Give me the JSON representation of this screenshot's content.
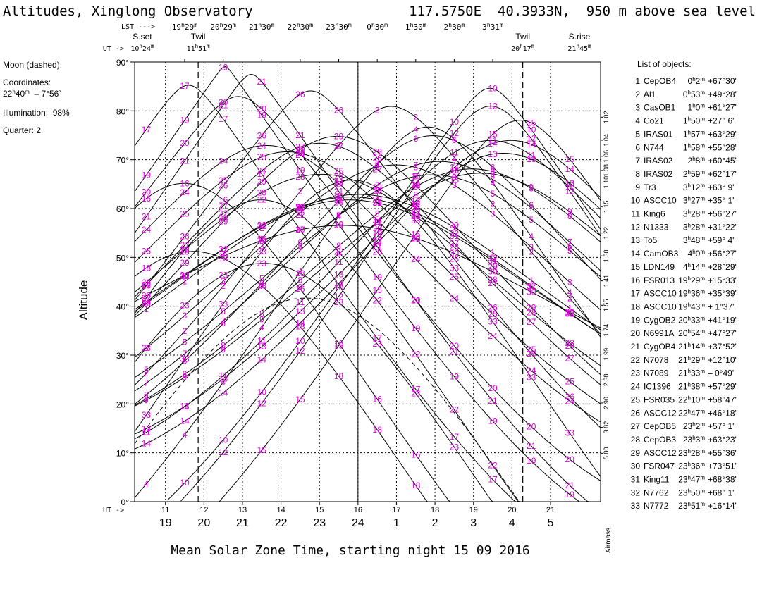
{
  "header": {
    "title": "Altitudes, Xinglong Observatory",
    "coords": "117.5750E  40.3933N,  950 m above sea level"
  },
  "top_scale": {
    "lst_label": "LST --->",
    "lst_ticks": [
      {
        "h": "19",
        "m": "29",
        "ut": 11.5
      },
      {
        "h": "20",
        "m": "29",
        "ut": 12.5
      },
      {
        "h": "21",
        "m": "30",
        "ut": 13.5
      },
      {
        "h": "22",
        "m": "30",
        "ut": 14.5
      },
      {
        "h": "23",
        "m": "30",
        "ut": 15.5
      },
      {
        "h": "0",
        "m": "30",
        "ut": 16.5
      },
      {
        "h": "1",
        "m": "30",
        "ut": 17.5
      },
      {
        "h": "2",
        "m": "30",
        "ut": 18.5
      },
      {
        "h": "3",
        "m": "31",
        "ut": 19.5
      }
    ],
    "events": [
      {
        "label": "S.set",
        "ut_label_h": "10",
        "ut_label_m": "24",
        "ut": 10.4
      },
      {
        "label": "Twil",
        "ut_label_h": "11",
        "ut_label_m": "51",
        "ut": 11.85
      },
      {
        "label": "Twil",
        "ut_label_h": "20",
        "ut_label_m": "17",
        "ut": 20.28
      },
      {
        "label": "S.rise",
        "ut_label_h": "21",
        "ut_label_m": "45",
        "ut": 21.75
      }
    ],
    "ut_arrow": "UT -> "
  },
  "moon_panel": {
    "title": "Moon (dashed):",
    "coords_label": "Coordinates:",
    "ra_h": "22",
    "ra_m": "40",
    "dec": "– 7°56`",
    "illumination": "Illumination:  98%",
    "quarter": "Quarter: 2"
  },
  "airmass_label": "Airmass",
  "airmass_ticks": [
    {
      "label": "1.02",
      "alt": 78.7
    },
    {
      "label": "1.04",
      "alt": 74.0
    },
    {
      "label": "1.06",
      "alt": 70.7
    },
    {
      "label": "1.08",
      "alt": 67.8
    },
    {
      "label": "1.10",
      "alt": 65.4
    },
    {
      "label": "1.15",
      "alt": 60.4
    },
    {
      "label": "1.22",
      "alt": 55.0
    },
    {
      "label": "1.30",
      "alt": 50.3
    },
    {
      "label": "1.41",
      "alt": 45.2
    },
    {
      "label": "1.55",
      "alt": 40.2
    },
    {
      "label": "1.74",
      "alt": 35.1
    },
    {
      "label": "1.99",
      "alt": 30.2
    },
    {
      "label": "2.38",
      "alt": 24.9
    },
    {
      "label": "2.90",
      "alt": 20.2
    },
    {
      "label": "3.82",
      "alt": 15.2
    },
    {
      "label": "5.80",
      "alt": 9.9
    }
  ],
  "objects_panel": {
    "title": "List of objects:",
    "objects": [
      {
        "n": "1",
        "name": "CepOB4",
        "rah": "0",
        "ram": "2",
        "dec": "+67°30'"
      },
      {
        "n": "2",
        "name": "Al1",
        "rah": "0",
        "ram": "53",
        "dec": "+49°28'"
      },
      {
        "n": "3",
        "name": "CasOB1",
        "rah": "1",
        "ram": "0",
        "dec": "+61°27'"
      },
      {
        "n": "4",
        "name": "Co21",
        "rah": "1",
        "ram": "50",
        "dec": "+27° 6'"
      },
      {
        "n": "5",
        "name": "IRAS01",
        "rah": "1",
        "ram": "57",
        "dec": "+63°29'"
      },
      {
        "n": "6",
        "name": "N744",
        "rah": "1",
        "ram": "58",
        "dec": "+55°28'"
      },
      {
        "n": "7",
        "name": "IRAS02",
        "rah": "2",
        "ram": "8",
        "dec": "+60°45'"
      },
      {
        "n": "8",
        "name": "IRAS02",
        "rah": "2",
        "ram": "59",
        "dec": "+62°17'"
      },
      {
        "n": "9",
        "name": "Tr3",
        "rah": "3",
        "ram": "12",
        "dec": "+63° 9'"
      },
      {
        "n": "10",
        "name": "ASCC10",
        "rah": "3",
        "ram": "27",
        "dec": "+35° 1'"
      },
      {
        "n": "11",
        "name": "King6",
        "rah": "3",
        "ram": "28",
        "dec": "+56°27'"
      },
      {
        "n": "12",
        "name": "N1333",
        "rah": "3",
        "ram": "28",
        "dec": "+31°22'"
      },
      {
        "n": "13",
        "name": "To5",
        "rah": "3",
        "ram": "48",
        "dec": "+59° 4'"
      },
      {
        "n": "14",
        "name": "CamOB3",
        "rah": "4",
        "ram": "0",
        "dec": "+56°27'"
      },
      {
        "n": "15",
        "name": "LDN149",
        "rah": "4",
        "ram": "14",
        "dec": "+28°29'"
      },
      {
        "n": "16",
        "name": "FSR013",
        "rah": "19",
        "ram": "29",
        "dec": "+15°33'"
      },
      {
        "n": "17",
        "name": "ASCC10",
        "rah": "19",
        "ram": "36",
        "dec": "+35°39'"
      },
      {
        "n": "18",
        "name": "ASCC10",
        "rah": "19",
        "ram": "43",
        "dec": "+ 1°37'"
      },
      {
        "n": "19",
        "name": "CygOB2",
        "rah": "20",
        "ram": "33",
        "dec": "+41°19'"
      },
      {
        "n": "20",
        "name": "N6991A",
        "rah": "20",
        "ram": "54",
        "dec": "+47°27'"
      },
      {
        "n": "21",
        "name": "CygOB4",
        "rah": "21",
        "ram": "14",
        "dec": "+37°52'"
      },
      {
        "n": "22",
        "name": "N7078",
        "rah": "21",
        "ram": "29",
        "dec": "+12°10'"
      },
      {
        "n": "23",
        "name": "N7089",
        "rah": "21",
        "ram": "33",
        "dec": "– 0°49'"
      },
      {
        "n": "24",
        "name": "IC1396",
        "rah": "21",
        "ram": "38",
        "dec": "+57°29'"
      },
      {
        "n": "25",
        "name": "FSR035",
        "rah": "22",
        "ram": "10",
        "dec": "+58°47'"
      },
      {
        "n": "26",
        "name": "ASCC12",
        "rah": "22",
        "ram": "47",
        "dec": "+46°18'"
      },
      {
        "n": "27",
        "name": "CepOB5",
        "rah": "23",
        "ram": "2",
        "dec": "+57° 1'"
      },
      {
        "n": "28",
        "name": "CepOB3",
        "rah": "23",
        "ram": "3",
        "dec": "+63°23'"
      },
      {
        "n": "29",
        "name": "ASCC12",
        "rah": "23",
        "ram": "28",
        "dec": "+55°36'"
      },
      {
        "n": "30",
        "name": "FSR047",
        "rah": "23",
        "ram": "36",
        "dec": "+73°51'"
      },
      {
        "n": "31",
        "name": "King11",
        "rah": "23",
        "ram": "47",
        "dec": "+68°38'"
      },
      {
        "n": "32",
        "name": "N7762",
        "rah": "23",
        "ram": "50",
        "dec": "+68° 1'"
      },
      {
        "n": "33",
        "name": "N7772",
        "rah": "23",
        "ram": "51",
        "dec": "+16°14'"
      }
    ]
  },
  "colors": {
    "curves": "#000000",
    "labels": "#e000e0",
    "grid": "#000000",
    "background": "#ffffff"
  },
  "chart_data": {
    "type": "line",
    "title": "Altitudes, Xinglong Observatory",
    "xlabel": "Mean Solar Zone Time, starting night 15 09 2016",
    "ylabel": "Altitude",
    "ut_axis_label": "UT ->",
    "xlim": [
      10.2,
      22.3
    ],
    "ylim": [
      0,
      90
    ],
    "x_ut_ticks": [
      11,
      12,
      13,
      14,
      15,
      16,
      17,
      18,
      19,
      20,
      21
    ],
    "x_local_ticks": [
      {
        "label": "19",
        "ut": 11
      },
      {
        "label": "20",
        "ut": 12
      },
      {
        "label": "21",
        "ut": 13
      },
      {
        "label": "22",
        "ut": 14
      },
      {
        "label": "23",
        "ut": 15
      },
      {
        "label": "24",
        "ut": 16
      },
      {
        "label": "1",
        "ut": 17
      },
      {
        "label": "2",
        "ut": 18
      },
      {
        "label": "3",
        "ut": 19
      },
      {
        "label": "4",
        "ut": 20
      },
      {
        "label": "5",
        "ut": 21
      }
    ],
    "y_ticks": [
      {
        "label": "0°",
        "value": 0
      },
      {
        "label": "10°",
        "value": 10
      },
      {
        "label": "20°",
        "value": 20
      },
      {
        "label": "30°",
        "value": 30
      },
      {
        "label": "40°",
        "value": 40
      },
      {
        "label": "50°",
        "value": 50
      },
      {
        "label": "60°",
        "value": 60
      },
      {
        "label": "70°",
        "value": 70
      },
      {
        "label": "80°",
        "value": 80
      },
      {
        "label": "90°",
        "value": 90
      }
    ],
    "grid": true,
    "midnight_ut": 16,
    "site_latitude_deg": 40.3933,
    "lst_at_ut11": 19.0,
    "moon": {
      "ra_h": 22.667,
      "dec_deg": -7.93,
      "style": "dashed"
    },
    "series": [
      {
        "name": "1",
        "ra_h": 0.033,
        "dec_deg": 67.5
      },
      {
        "name": "2",
        "ra_h": 0.883,
        "dec_deg": 49.47
      },
      {
        "name": "3",
        "ra_h": 1.0,
        "dec_deg": 61.45
      },
      {
        "name": "4",
        "ra_h": 1.833,
        "dec_deg": 27.1
      },
      {
        "name": "5",
        "ra_h": 1.95,
        "dec_deg": 63.48
      },
      {
        "name": "6",
        "ra_h": 1.967,
        "dec_deg": 55.47
      },
      {
        "name": "7",
        "ra_h": 2.133,
        "dec_deg": 60.75
      },
      {
        "name": "8",
        "ra_h": 2.983,
        "dec_deg": 62.28
      },
      {
        "name": "9",
        "ra_h": 3.2,
        "dec_deg": 63.15
      },
      {
        "name": "10",
        "ra_h": 3.45,
        "dec_deg": 35.02
      },
      {
        "name": "11",
        "ra_h": 3.467,
        "dec_deg": 56.45
      },
      {
        "name": "12",
        "ra_h": 3.467,
        "dec_deg": 31.37
      },
      {
        "name": "13",
        "ra_h": 3.8,
        "dec_deg": 59.07
      },
      {
        "name": "14",
        "ra_h": 4.0,
        "dec_deg": 56.45
      },
      {
        "name": "15",
        "ra_h": 4.233,
        "dec_deg": 28.48
      },
      {
        "name": "16",
        "ra_h": 19.483,
        "dec_deg": 15.55
      },
      {
        "name": "17",
        "ra_h": 19.6,
        "dec_deg": 35.65
      },
      {
        "name": "18",
        "ra_h": 19.717,
        "dec_deg": 1.62
      },
      {
        "name": "19",
        "ra_h": 20.55,
        "dec_deg": 41.32
      },
      {
        "name": "20",
        "ra_h": 20.9,
        "dec_deg": 47.45
      },
      {
        "name": "21",
        "ra_h": 21.233,
        "dec_deg": 37.87
      },
      {
        "name": "22",
        "ra_h": 21.483,
        "dec_deg": 12.17
      },
      {
        "name": "23",
        "ra_h": 21.55,
        "dec_deg": -0.82
      },
      {
        "name": "24",
        "ra_h": 21.633,
        "dec_deg": 57.48
      },
      {
        "name": "25",
        "ra_h": 22.167,
        "dec_deg": 58.78
      },
      {
        "name": "26",
        "ra_h": 22.783,
        "dec_deg": 46.3
      },
      {
        "name": "27",
        "ra_h": 23.033,
        "dec_deg": 57.02
      },
      {
        "name": "28",
        "ra_h": 23.05,
        "dec_deg": 63.38
      },
      {
        "name": "29",
        "ra_h": 23.467,
        "dec_deg": 55.6
      },
      {
        "name": "30",
        "ra_h": 23.6,
        "dec_deg": 73.85
      },
      {
        "name": "31",
        "ra_h": 23.783,
        "dec_deg": 68.63
      },
      {
        "name": "32",
        "ra_h": 23.833,
        "dec_deg": 68.02
      },
      {
        "name": "33",
        "ra_h": 23.85,
        "dec_deg": 16.23
      }
    ]
  }
}
